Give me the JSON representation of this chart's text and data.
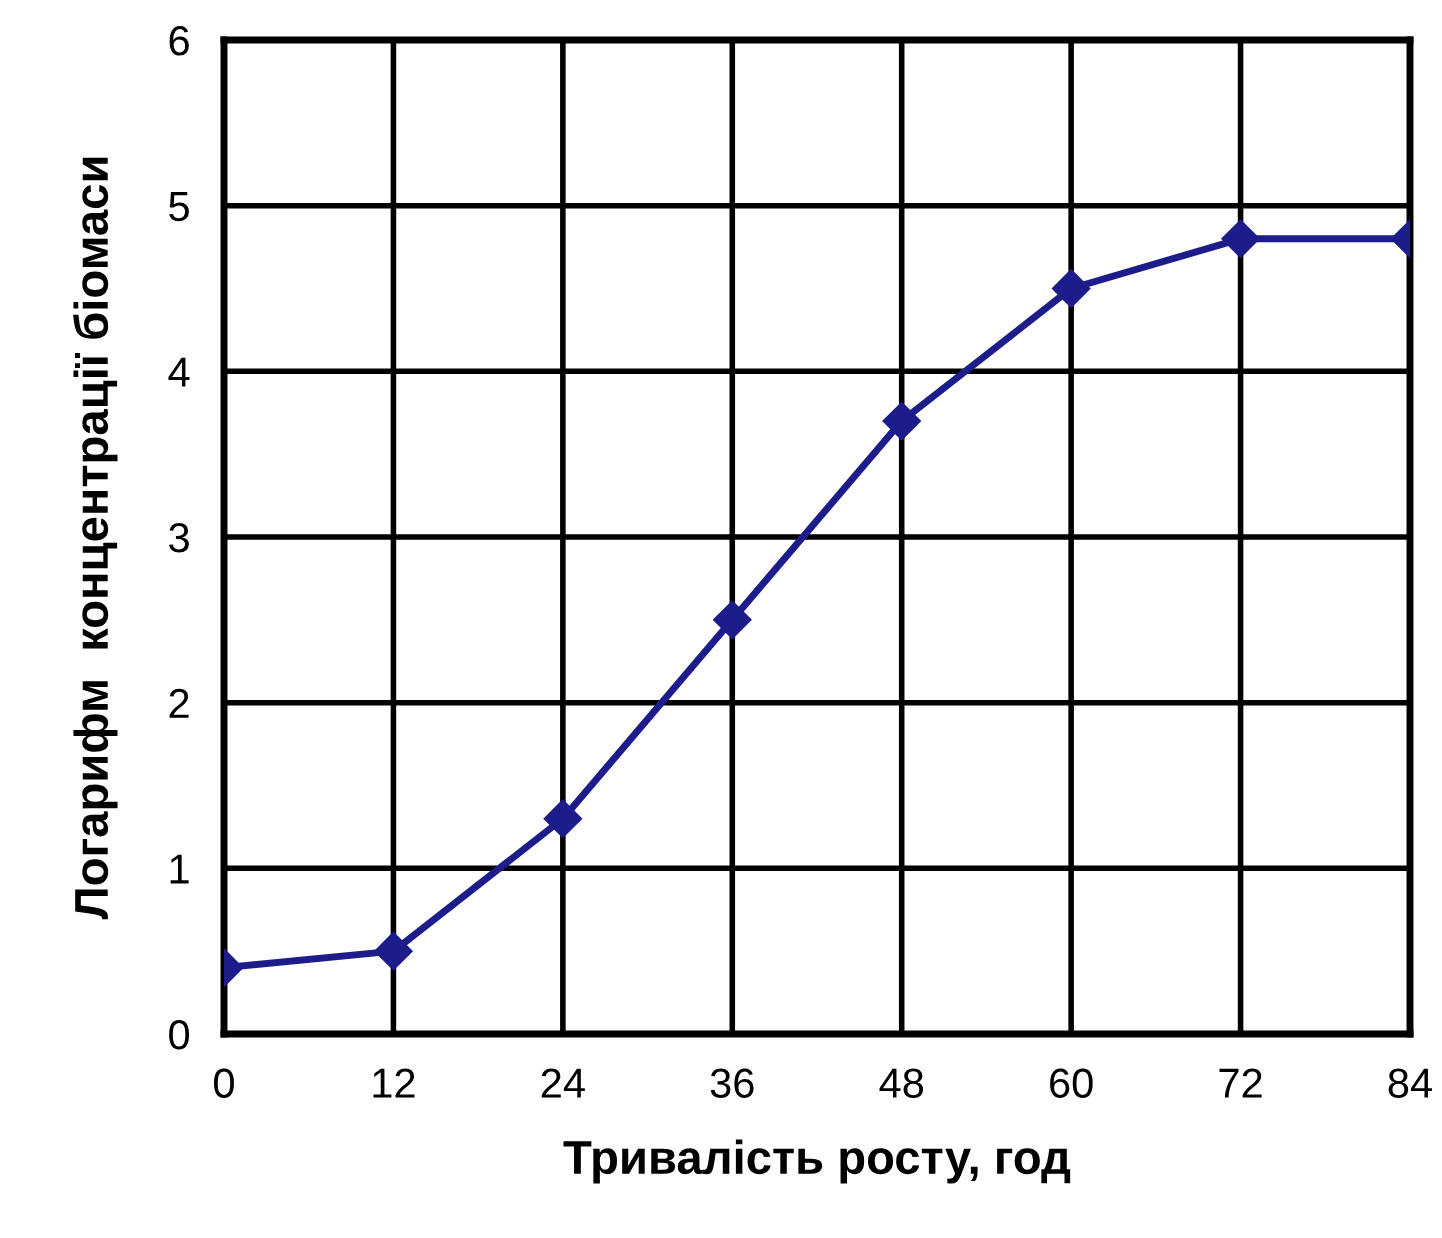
{
  "chart_data": {
    "type": "line",
    "xlabel": "Тривалість росту, год",
    "ylabel": "Логарифм  концентрації біомаси",
    "x": [
      0,
      12,
      24,
      36,
      48,
      60,
      72,
      84
    ],
    "series": [
      {
        "color": "#1c1c8a",
        "values": [
          0.4,
          0.5,
          1.3,
          2.5,
          3.7,
          4.5,
          4.8,
          4.8
        ]
      }
    ],
    "xlim": [
      0,
      84
    ],
    "xticks": [
      0,
      12,
      24,
      36,
      48,
      60,
      72,
      84
    ],
    "ylim": [
      0,
      6
    ],
    "yticks": [
      0,
      1,
      2,
      3,
      4,
      5,
      6
    ],
    "grid": true,
    "marker": "diamond",
    "line_style": "solid"
  }
}
